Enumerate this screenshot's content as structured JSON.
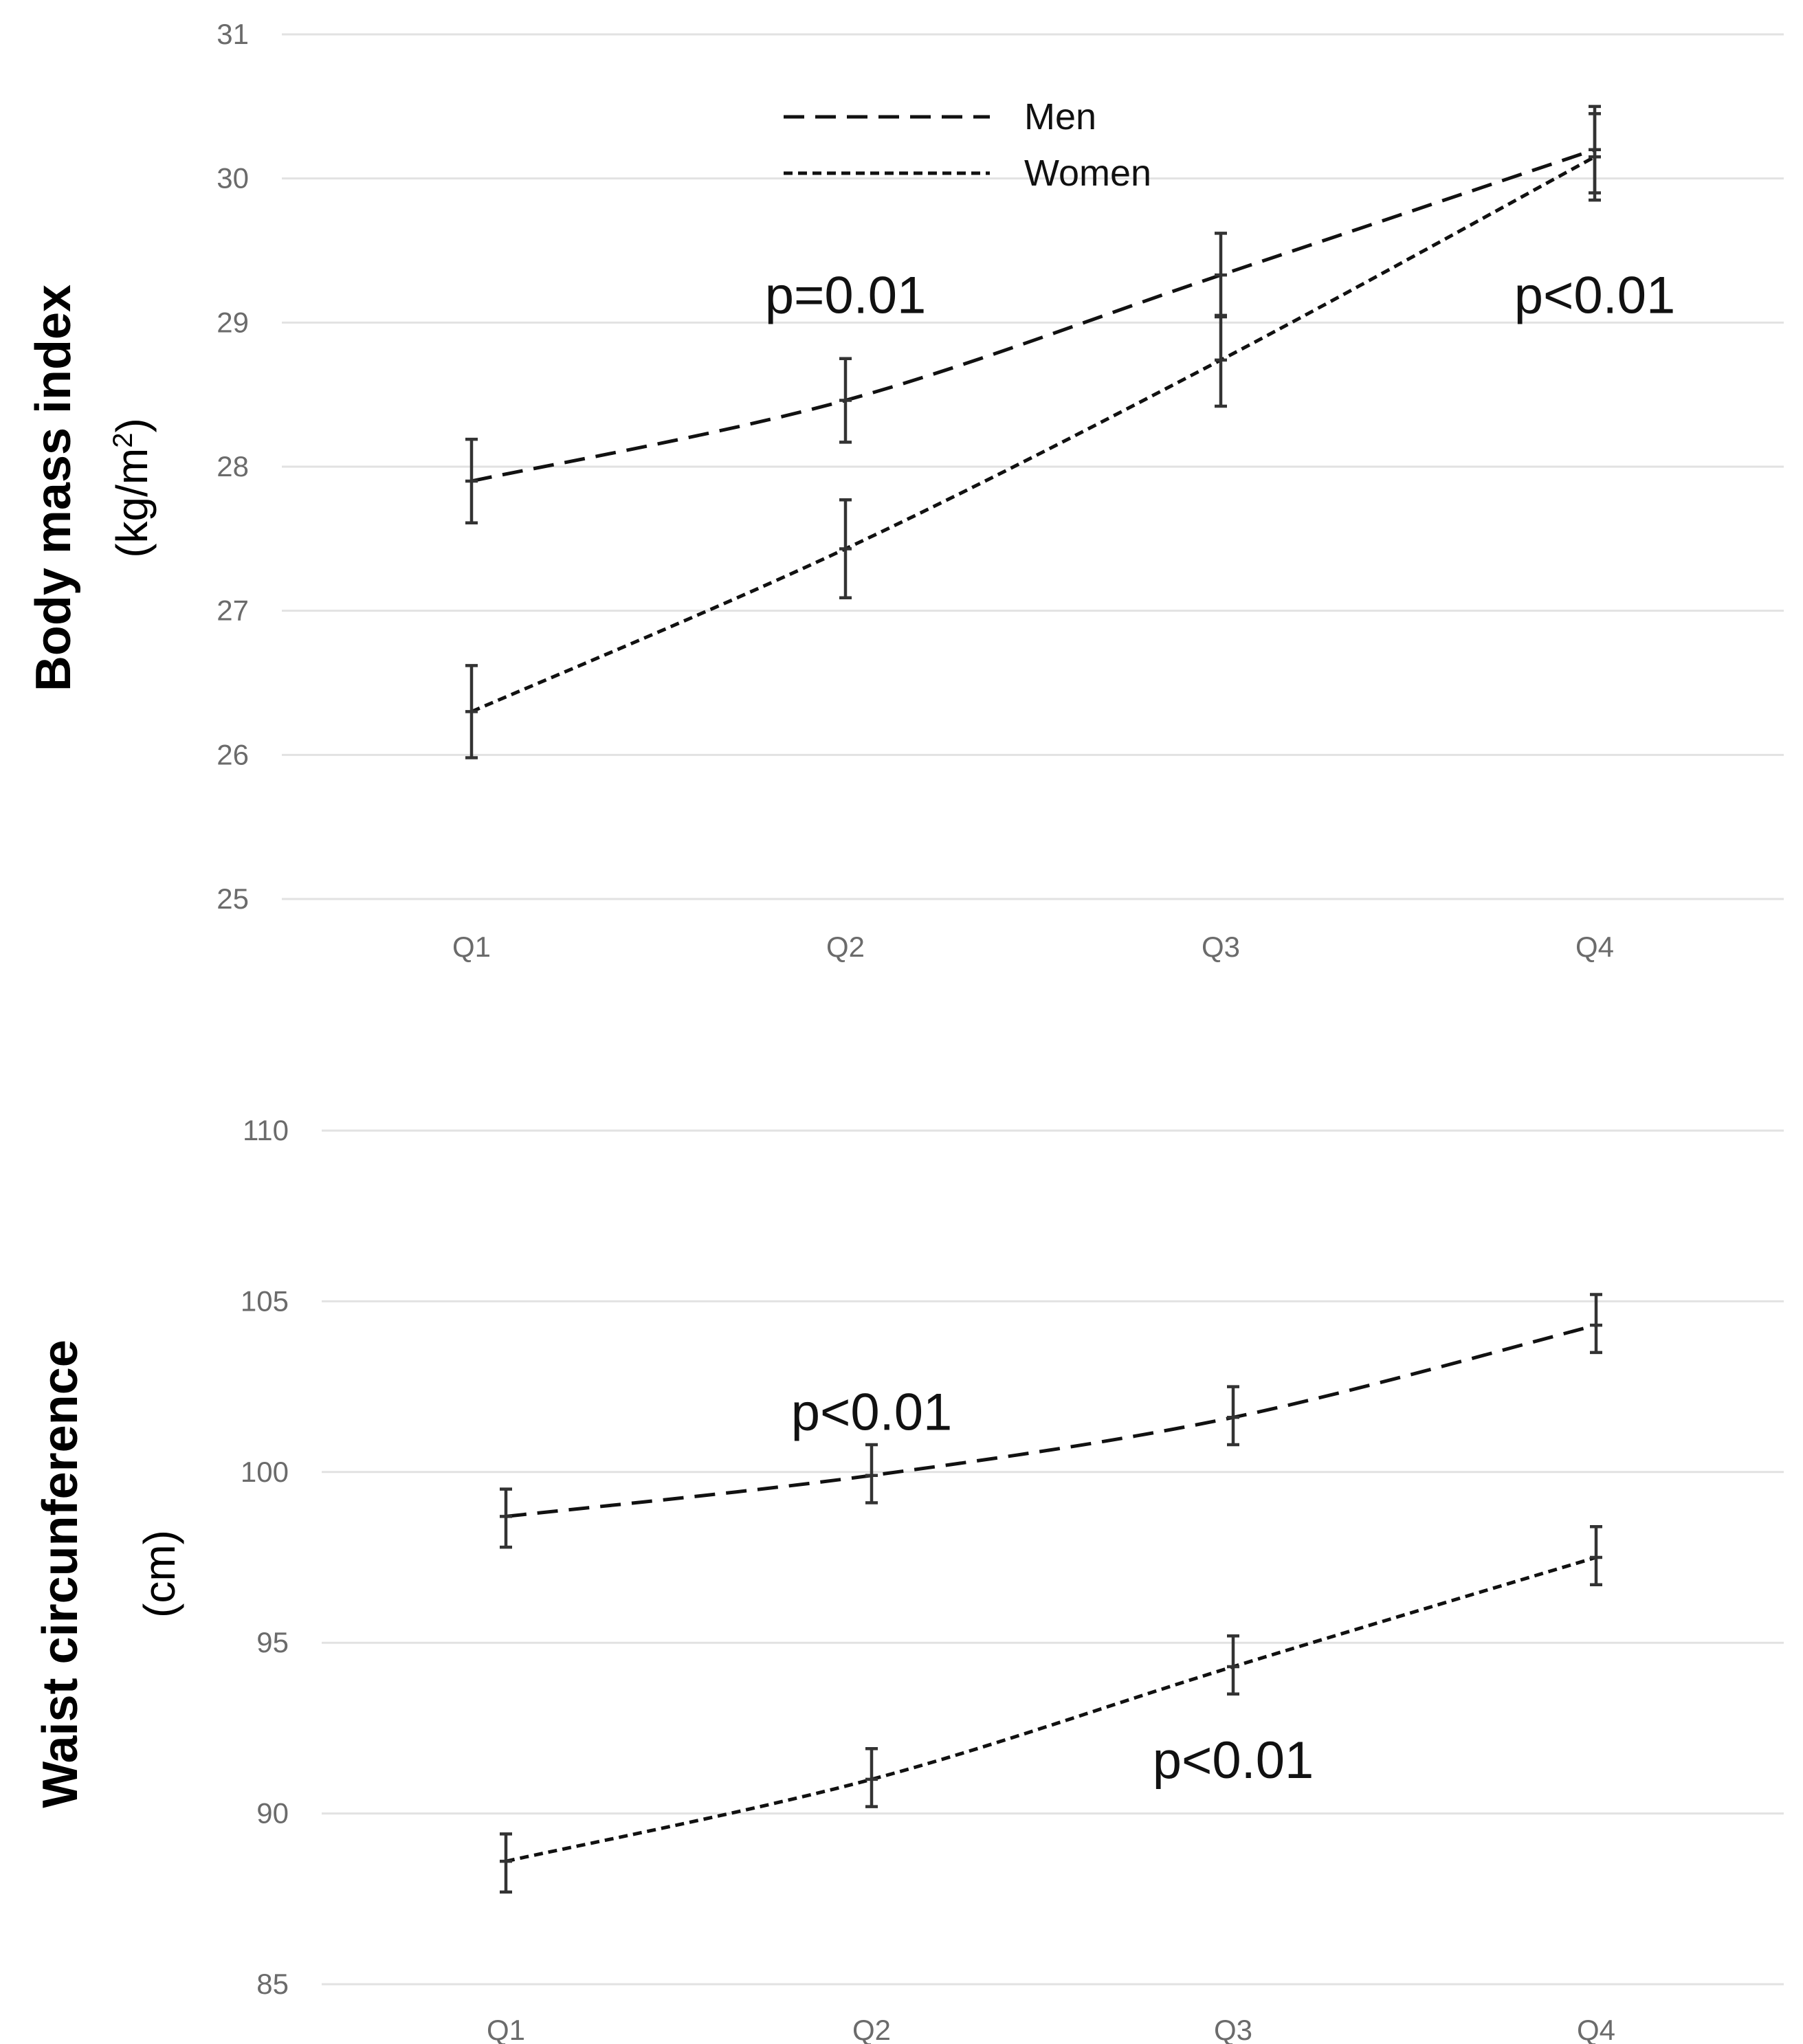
{
  "chart_data": [
    {
      "type": "line",
      "title": "",
      "ylabel": "Body mass index",
      "ylabel_unit_prefix": "(kg/m",
      "ylabel_unit_sup": "2",
      "ylabel_unit_suffix": ")",
      "xlabel": "",
      "categories": [
        "Q1",
        "Q2",
        "Q3",
        "Q4"
      ],
      "ylim": [
        25,
        31
      ],
      "yticks": [
        25,
        26,
        27,
        28,
        29,
        30,
        31
      ],
      "grid": true,
      "legend": {
        "placement": "top-center",
        "entries": [
          {
            "name": "Men",
            "style": "dashed"
          },
          {
            "name": "Women",
            "style": "dotted"
          }
        ]
      },
      "series": [
        {
          "name": "Men",
          "style": "dashed",
          "values": [
            27.9,
            28.46,
            29.33,
            30.2
          ],
          "err_low": [
            27.61,
            28.17,
            29.04,
            29.9
          ],
          "err_high": [
            28.19,
            28.75,
            29.62,
            30.5
          ]
        },
        {
          "name": "Women",
          "style": "dotted",
          "values": [
            26.3,
            27.43,
            28.74,
            30.15
          ],
          "err_low": [
            25.98,
            27.09,
            28.42,
            29.85
          ],
          "err_high": [
            26.62,
            27.77,
            29.05,
            30.45
          ]
        }
      ],
      "annotations": [
        {
          "text": "p=0.01",
          "x": "Q2",
          "y": 29.2
        },
        {
          "text": "p<0.01",
          "x": "Q4",
          "y": 29.2
        }
      ]
    },
    {
      "type": "line",
      "title": "",
      "ylabel": "Waist circunference",
      "ylabel_unit": "(cm)",
      "xlabel": "",
      "categories": [
        "Q1",
        "Q2",
        "Q3",
        "Q4"
      ],
      "ylim": [
        85,
        110
      ],
      "yticks": [
        85,
        90,
        95,
        100,
        105,
        110
      ],
      "grid": true,
      "series": [
        {
          "name": "Men",
          "style": "dashed",
          "values": [
            98.7,
            99.9,
            101.6,
            104.3
          ],
          "err_low": [
            97.8,
            99.1,
            100.8,
            103.5
          ],
          "err_high": [
            99.5,
            100.8,
            102.5,
            105.2
          ]
        },
        {
          "name": "Women",
          "style": "dotted",
          "values": [
            88.6,
            91.0,
            94.3,
            97.5
          ],
          "err_low": [
            87.7,
            90.2,
            93.5,
            96.7
          ],
          "err_high": [
            89.4,
            91.9,
            95.2,
            98.4
          ]
        }
      ],
      "annotations": [
        {
          "text": "p<0.01",
          "x": "Q2",
          "y": 101.8
        },
        {
          "text": "p<0.01",
          "x": "Q3",
          "y": 91.6
        }
      ]
    }
  ]
}
